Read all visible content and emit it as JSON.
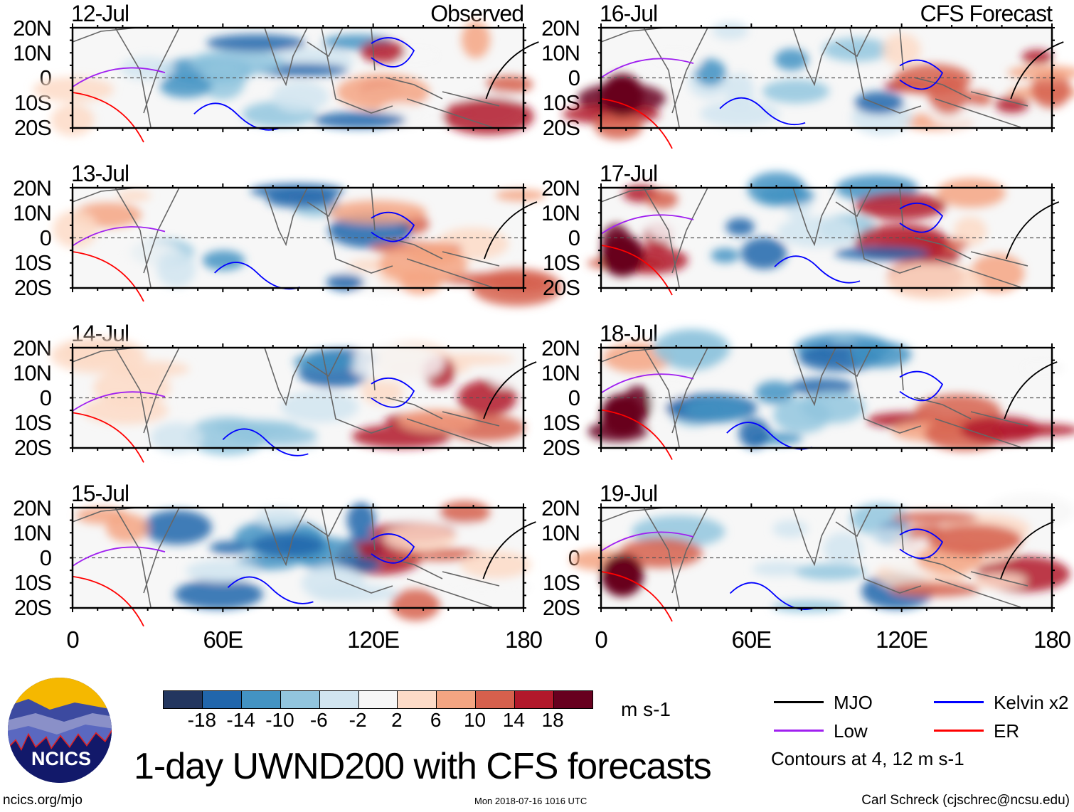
{
  "columns": [
    {
      "label": "Observed",
      "panels": [
        "12-Jul",
        "13-Jul",
        "14-Jul",
        "15-Jul"
      ]
    },
    {
      "label": "CFS Forecast",
      "panels": [
        "16-Jul",
        "17-Jul",
        "18-Jul",
        "19-Jul"
      ]
    }
  ],
  "y_axis_labels": [
    "20N",
    "10N",
    "0",
    "10S",
    "20S"
  ],
  "x_axis_labels": [
    "0",
    "60E",
    "120E",
    "180"
  ],
  "colorbar": {
    "colors": [
      "#23365f",
      "#2166ac",
      "#4393c3",
      "#92c5de",
      "#d1e5f0",
      "#f7f7f7",
      "#fddbc7",
      "#f4a582",
      "#d6604d",
      "#b2182b",
      "#67001f"
    ],
    "ticks": [
      "-18",
      "-14",
      "-10",
      "-6",
      "-2",
      "2",
      "6",
      "10",
      "14",
      "18"
    ],
    "units": "m s-1"
  },
  "legend": {
    "items": [
      {
        "label": "MJO",
        "color": "#000000"
      },
      {
        "label": "Kelvin x2",
        "color": "#0000ff"
      },
      {
        "label": "Low",
        "color": "#a020f0"
      },
      {
        "label": "ER",
        "color": "#ff0000"
      }
    ],
    "note": "Contours at 4, 12 m s-1"
  },
  "title": "1-day UWND200 with CFS forecasts",
  "logo_text": "NCICS",
  "footer": {
    "left": "ncics.org/mjo",
    "center": "Mon 2018-07-16 1016 UTC",
    "right": "Carl Schreck (cjschrec@ncsu.edu)"
  }
}
